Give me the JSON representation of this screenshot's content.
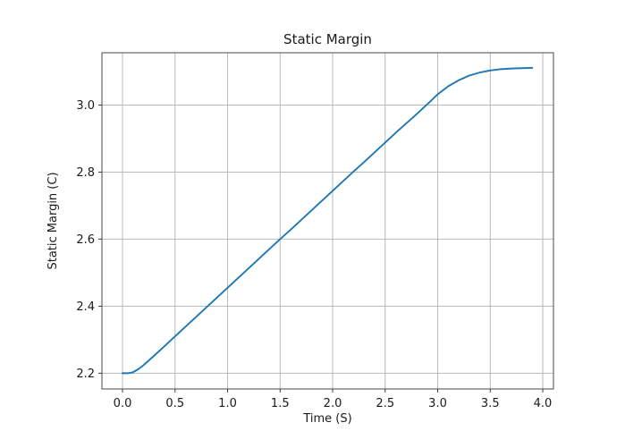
{
  "chart_data": {
    "type": "line",
    "title": "Static Margin",
    "xlabel": "Time (S)",
    "ylabel": "Static Margin (C)",
    "xlim": [
      -0.196,
      4.102
    ],
    "ylim": [
      2.153,
      3.156
    ],
    "grid": true,
    "legend": "none",
    "x_ticks": {
      "values": [
        0.0,
        0.5,
        1.0,
        1.5,
        2.0,
        2.5,
        3.0,
        3.5,
        4.0
      ],
      "labels": [
        "0.0",
        "0.5",
        "1.0",
        "1.5",
        "2.0",
        "2.5",
        "3.0",
        "3.5",
        "4.0"
      ]
    },
    "y_ticks": {
      "values": [
        2.2,
        2.4,
        2.6,
        2.8,
        3.0
      ],
      "labels": [
        "2.2",
        "2.4",
        "2.6",
        "2.8",
        "3.0"
      ]
    },
    "series": [
      {
        "name": "Static Margin",
        "color": "#1f77b4",
        "x": [
          0.0,
          0.05,
          0.1,
          0.15,
          0.2,
          0.25,
          0.3,
          0.4,
          0.5,
          0.6,
          0.7,
          0.8,
          0.9,
          1.0,
          1.1,
          1.2,
          1.3,
          1.4,
          1.5,
          1.6,
          1.7,
          1.8,
          1.9,
          2.0,
          2.1,
          2.2,
          2.3,
          2.4,
          2.5,
          2.6,
          2.7,
          2.8,
          2.9,
          3.0,
          3.1,
          3.2,
          3.3,
          3.4,
          3.5,
          3.6,
          3.7,
          3.8,
          3.9
        ],
        "y": [
          2.2,
          2.2,
          2.203,
          2.212,
          2.224,
          2.238,
          2.252,
          2.281,
          2.31,
          2.339,
          2.368,
          2.397,
          2.426,
          2.455,
          2.484,
          2.513,
          2.542,
          2.571,
          2.6,
          2.628,
          2.657,
          2.686,
          2.715,
          2.744,
          2.773,
          2.802,
          2.83,
          2.859,
          2.888,
          2.917,
          2.945,
          2.973,
          3.002,
          3.032,
          3.056,
          3.074,
          3.088,
          3.097,
          3.103,
          3.107,
          3.109,
          3.11,
          3.111
        ]
      }
    ]
  }
}
